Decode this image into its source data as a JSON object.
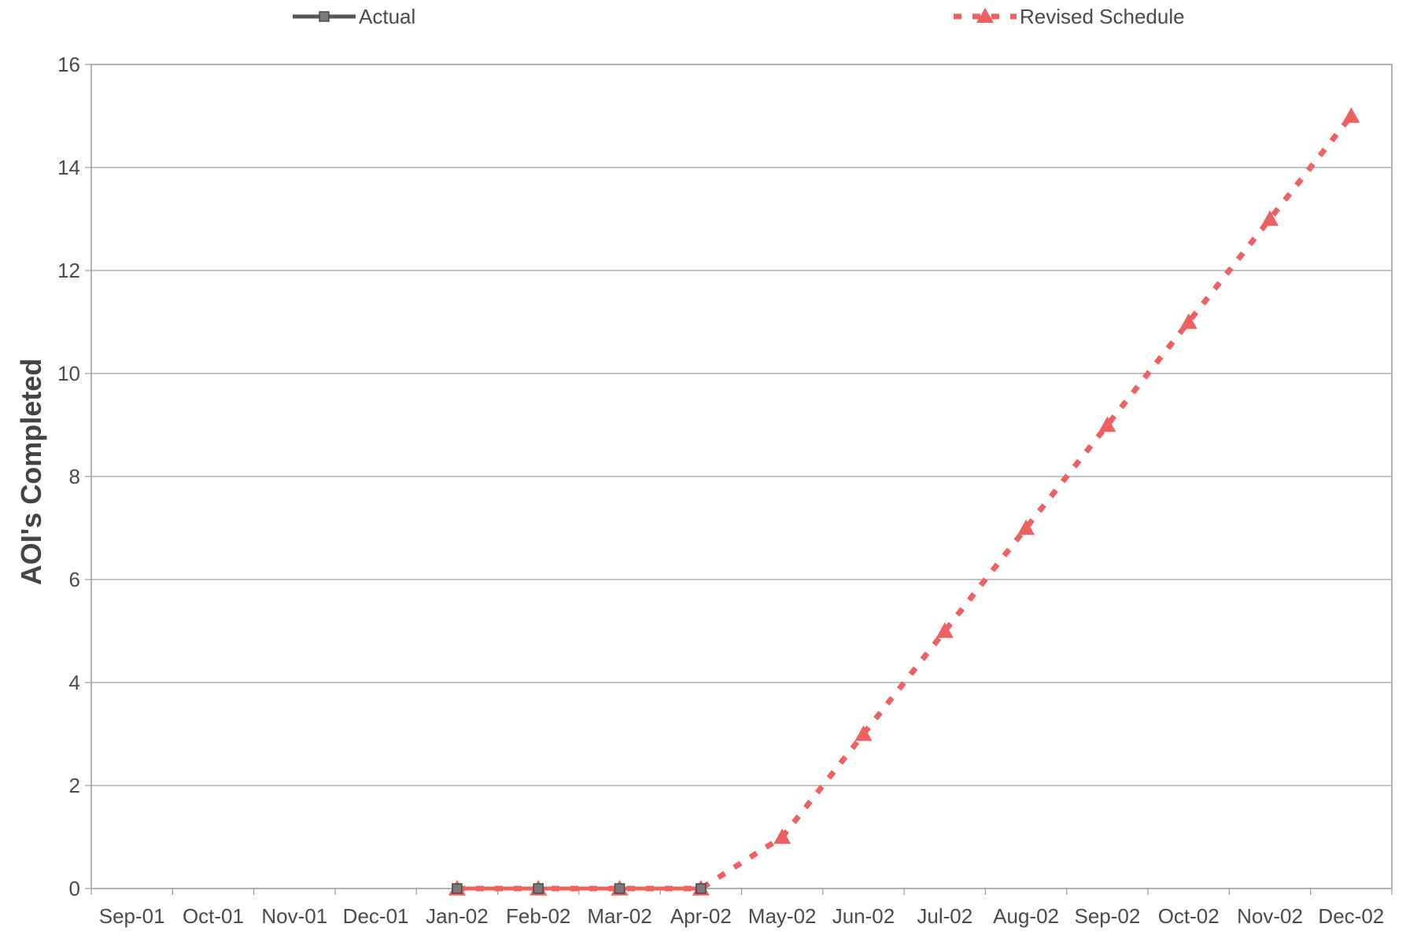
{
  "chart_data": {
    "type": "line",
    "title": "",
    "xlabel": "",
    "ylabel": "AOI's Completed",
    "categories": [
      "Sep-01",
      "Oct-01",
      "Nov-01",
      "Dec-01",
      "Jan-02",
      "Feb-02",
      "Mar-02",
      "Apr-02",
      "May-02",
      "Jun-02",
      "Jul-02",
      "Aug-02",
      "Sep-02",
      "Oct-02",
      "Nov-02",
      "Dec-02"
    ],
    "ylim": [
      0,
      16
    ],
    "yticks": [
      0,
      2,
      4,
      6,
      8,
      10,
      12,
      14,
      16
    ],
    "grid": true,
    "legend_position": "top",
    "series": [
      {
        "name": "Actual",
        "color": "#555555",
        "style": "solid",
        "marker": "square",
        "x": [
          "Jan-02",
          "Feb-02",
          "Mar-02",
          "Apr-02"
        ],
        "values": [
          0,
          0,
          0,
          0
        ]
      },
      {
        "name": "Revised Schedule",
        "color": "#f06060",
        "style": "dashed",
        "marker": "triangle",
        "x": [
          "Jan-02",
          "Feb-02",
          "Mar-02",
          "Apr-02",
          "May-02",
          "Jun-02",
          "Jul-02",
          "Aug-02",
          "Sep-02",
          "Oct-02",
          "Nov-02",
          "Dec-02"
        ],
        "values": [
          0,
          0,
          0,
          0,
          1,
          3,
          5,
          7,
          9,
          11,
          13,
          15
        ]
      }
    ]
  }
}
